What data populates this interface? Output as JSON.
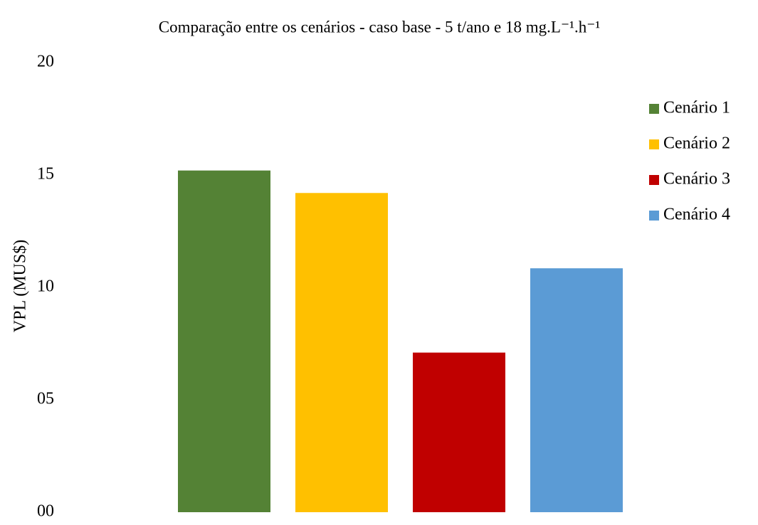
{
  "chart_data": {
    "type": "bar",
    "title": "Comparação entre os cenários - caso base - 5 t/ano e 18 mg.L⁻¹.h⁻¹",
    "y_label": "VPL (MUS$)",
    "categories": [
      null
    ],
    "series": [
      {
        "name": "Cenário 1",
        "color": "#548235",
        "values": [
          15.2
        ]
      },
      {
        "name": "Cenário 2",
        "color": "#ffc000",
        "values": [
          14.2
        ]
      },
      {
        "name": "Cenário 3",
        "color": "#c00000",
        "values": [
          7.1
        ]
      },
      {
        "name": "Cenário 4",
        "color": "#5b9bd5",
        "values": [
          10.85
        ]
      }
    ],
    "ylim": [
      0,
      20
    ],
    "yticks": [
      {
        "value": 0,
        "label": "00"
      },
      {
        "value": 5,
        "label": "05"
      },
      10,
      15,
      20
    ],
    "grid": false,
    "legend": "right"
  }
}
